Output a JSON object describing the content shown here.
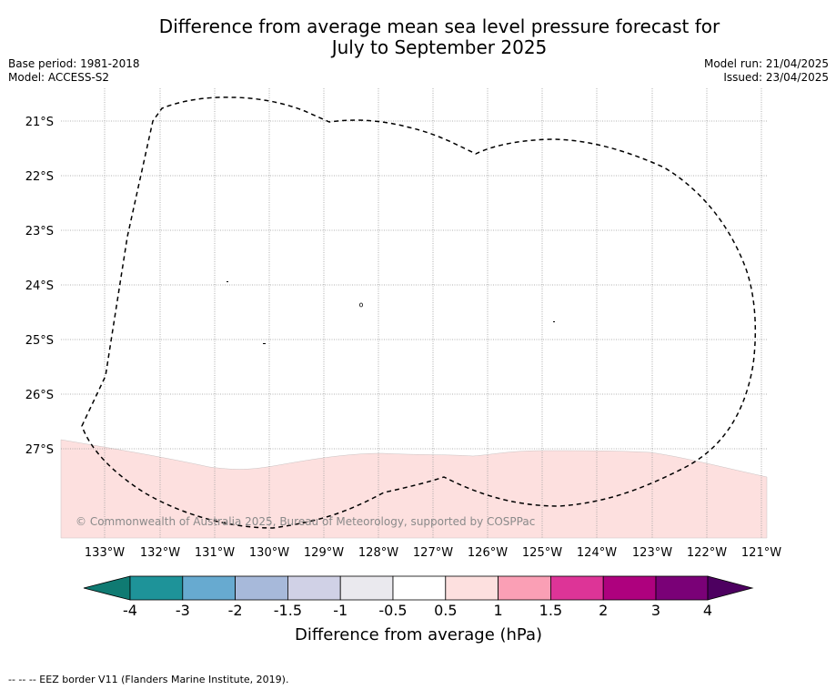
{
  "title": {
    "line1": "Difference from average mean sea level pressure forecast for",
    "line2": "July to September 2025"
  },
  "meta": {
    "base_period": "Base period: 1981-2018",
    "model": "Model: ACCESS-S2",
    "model_run": "Model run: 21/04/2025",
    "issued": "Issued: 23/04/2025"
  },
  "map": {
    "lat_labels": [
      "21°S",
      "22°S",
      "23°S",
      "24°S",
      "25°S",
      "26°S",
      "27°S"
    ],
    "lon_labels": [
      "133°W",
      "132°W",
      "131°W",
      "130°W",
      "129°W",
      "128°W",
      "127°W",
      "126°W",
      "125°W",
      "124°W",
      "123°W",
      "122°W",
      "121°W"
    ],
    "anomaly_fill_color": "#fde0df",
    "anomaly_class": "0.5 to 1",
    "copyright": "© Commonwealth of Australia 2025, Bureau of Meteorology, supported by COSPPac"
  },
  "colorbar": {
    "ticks": [
      "-4",
      "-3",
      "-2",
      "-1.5",
      "-1",
      "-0.5",
      "0.5",
      "1",
      "1.5",
      "2",
      "3",
      "4"
    ],
    "colors": [
      "#0f7a72",
      "#1e9399",
      "#67aad0",
      "#a7b9da",
      "#d0d1e6",
      "#eae9ee",
      "#ffffff",
      "#fde0df",
      "#fa9fb5",
      "#dd3497",
      "#ae017e",
      "#7a0177",
      "#4d0060"
    ],
    "label": "Difference from average (hPa)"
  },
  "footnote": "--  --  -- EEZ border V11 (Flanders Marine Institute, 2019)."
}
